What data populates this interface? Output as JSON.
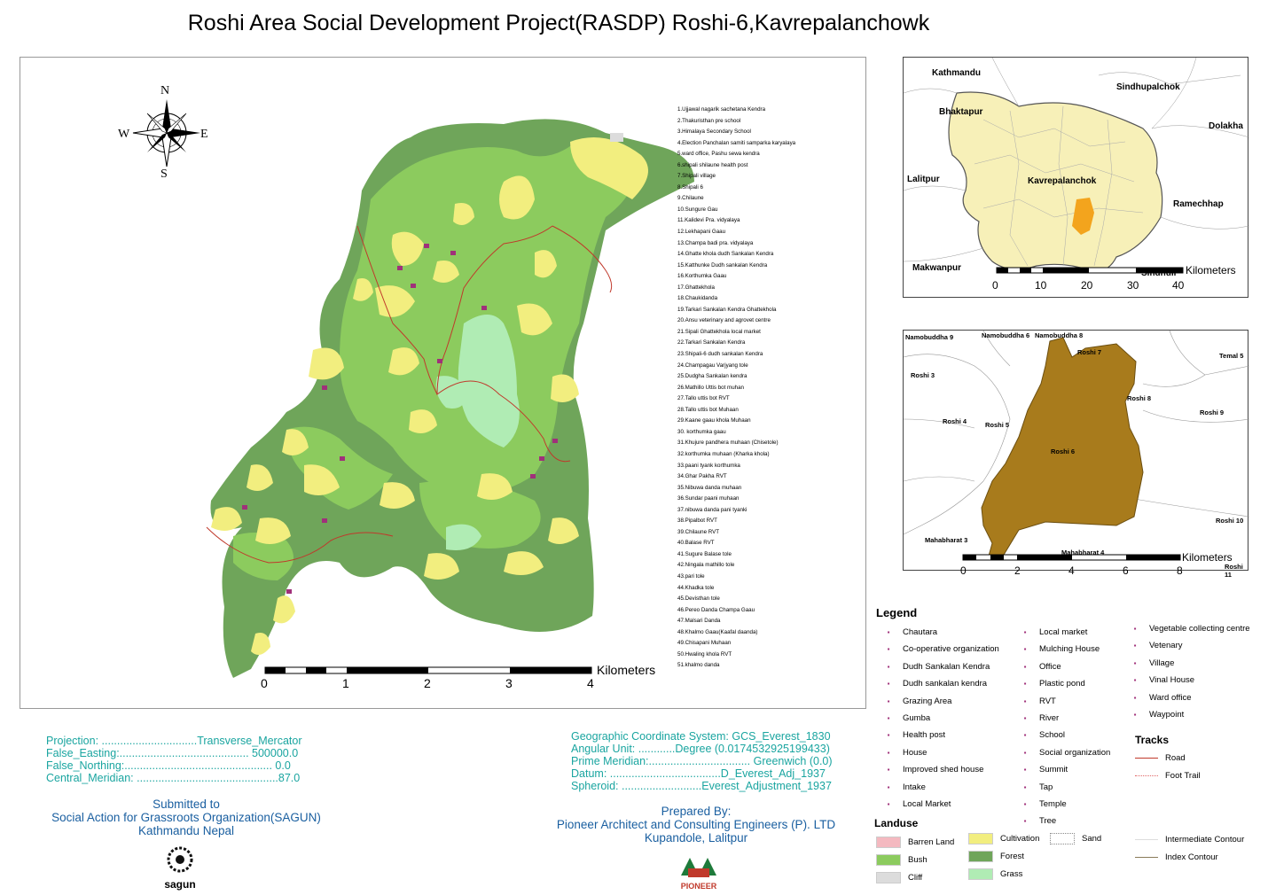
{
  "title": "Roshi Area Social Development Project(RASDP) Roshi-6,Kavrepalanchowk",
  "compass": {
    "n": "N",
    "s": "S",
    "e": "E",
    "w": "W"
  },
  "poi_list": [
    "1.Ujjawal nagarik sachetana Kendra",
    "2.Thakuristhan pre school",
    "3.Himalaya Secondary School",
    "4.Election Panchalan samiti samparka karyalaya",
    "5.ward office, Pashu sewa kendra",
    "6.shipali shilaune health post",
    "7.Shipali village",
    "8.Shipali 6",
    "9.Chilaune",
    "10.Sungure Gau",
    "11.Kalidevi Pra. vidyalaya",
    "12.Lekhapani Gaau",
    "13.Champa badi pra. vidyalaya",
    "14.Ghatte khola dudh Sankalan Kendra",
    "15.Katthunke Dudh sankalan Kendra",
    "16.Korthumka Gaau",
    "17.Ghattekhola",
    "18.Chaukidanda",
    "19.Tarkari Sankalan Kendra Ghattekhola",
    "20.Ansu veterinary and agrovet centre",
    "21.Sipali Ghattekhola local market",
    "22.Tarkari Sankalan Kendra",
    "23.Shipali-6 dudh sankalan Kendra",
    "24.Champagau Varjyang tole",
    "25.Dudgha Sankalan kendra",
    "26.Mathillo Uttis bot muhan",
    "27.Tallo uttis bot RVT",
    "28.Tallo uttis bot Muhaan",
    "29.Kaane gaau khola Muhaan",
    "30. korthumka gaau",
    "31.Khujure pandhera muhaan (Chisetole)",
    "32.korthumka muhaan (Kharka khola)",
    "33.paani tyank korthumka",
    "34.Ghar Pakha RVT",
    "35.Nibuwa danda muhaan",
    "36.Sundar paani muhaan",
    "37.nibuwa danda pani tyanki",
    "38.Pipalbot RVT",
    "39.Chilaune RVT",
    "40.Balase RVT",
    "41.Sugure Balase tole",
    "42.Ningala mathillo tole",
    "43.pari tole",
    "44.Khadka tole",
    "45.Devisthan tole",
    "46.Pereo Danda Champa Gaau",
    "47.Malsari Danda",
    "48.Khalmo Gaau(Kaafal daanda)",
    "49.Chisapani Muhaan",
    "50.Hwaling khola RVT",
    "51.khalmo danda"
  ],
  "main_scale": {
    "ticks": [
      "0",
      "1",
      "2",
      "3",
      "4"
    ],
    "unit": "Kilometers"
  },
  "inset1": {
    "districts": [
      "Kathmandu",
      "Sindhupalchok",
      "Bhaktapur",
      "Dolakha",
      "Lalitpur",
      "Kavrepalanchok",
      "Ramechhap",
      "Makwanpur",
      "Sindhuli"
    ],
    "scale": {
      "ticks": [
        "0",
        "10",
        "20",
        "30",
        "40"
      ],
      "unit": "Kilometers"
    }
  },
  "inset2": {
    "labels": [
      "Namobuddha 9",
      "Namobuddha 6",
      "Namobuddha 8",
      "Roshi 7",
      "Temal 5",
      "Roshi 3",
      "Roshi 8",
      "Roshi 4",
      "Roshi 5",
      "Roshi 9",
      "Roshi 6",
      "Roshi 10",
      "Mahabharat 3",
      "Mahabharat 4",
      "Roshi 11"
    ],
    "scale": {
      "ticks": [
        "0",
        "2",
        "4",
        "6",
        "8"
      ],
      "unit": "Kilometers"
    }
  },
  "legend": {
    "title": "Legend",
    "col1": [
      "Chautara",
      "Co-operative organization",
      "Dudh Sankalan Kendra",
      "Dudh sankalan kendra",
      "Grazing Area",
      "Gumba",
      "Health post",
      "House",
      "Improved shed house",
      "Intake",
      "Local Market"
    ],
    "col2": [
      "Local market",
      "Mulching House",
      "Office",
      "Plastic pond",
      "RVT",
      "River",
      "School",
      "Social organization",
      "Summit",
      "Tap",
      "Temple",
      "Tree"
    ],
    "col3": [
      "Vegetable collecting centre",
      "Vetenary",
      "Village",
      "Vinal House",
      "Ward office",
      "Waypoint"
    ],
    "tracks_title": "Tracks",
    "tracks": [
      {
        "label": "Road",
        "color": "#c0392b"
      },
      {
        "label": "Foot Trail",
        "color": "#e06666"
      }
    ],
    "landuse_title": "Landuse",
    "landuse": [
      {
        "label": "Barren Land",
        "color": "#f4b9c0"
      },
      {
        "label": "Bush",
        "color": "#8ccb5e"
      },
      {
        "label": "Cliff",
        "color": "#dcdcdc"
      },
      {
        "label": "Cultivation",
        "color": "#f2ee7f"
      },
      {
        "label": "Forest",
        "color": "#6fa55a"
      },
      {
        "label": "Grass",
        "color": "#b0ecb4"
      },
      {
        "label": "Sand",
        "color": "#ffffff"
      }
    ],
    "contours": [
      "Intermediate Contour",
      "Index Contour"
    ]
  },
  "projection": [
    "Projection: ...............................Transverse_Mercator",
    "False_Easting:.......................................... 500000.0",
    "False_Northing:................................................ 0.0",
    "Central_Meridian: ..............................................87.0"
  ],
  "gcs": [
    "Geographic Coordinate System: GCS_Everest_1830",
    "Angular Unit: ............Degree (0.0174532925199433)",
    "Prime Meridian:................................. Greenwich (0.0)",
    "Datum: ....................................D_Everest_Adj_1937",
    "Spheroid: ..........................Everest_Adjustment_1937"
  ],
  "submitted": [
    "Submitted to",
    "Social Action for Grassroots Organization(SAGUN)",
    "Kathmandu Nepal"
  ],
  "prepared": [
    "Prepared By:",
    "Pioneer Architect and Consulting Engineers (P). LTD",
    "Kupandole, Lalitpur"
  ],
  "logos": {
    "sagun": "sagun",
    "pioneer": "PIONEER"
  },
  "colors": {
    "forest": "#6fa55a",
    "bush": "#8ccb5e",
    "cultivation": "#f2ee7f",
    "grass": "#b0ecb4",
    "roshi6": "#a87b1c",
    "kavre_district": "#f7f0b8",
    "highlight": "#f3a41d"
  }
}
